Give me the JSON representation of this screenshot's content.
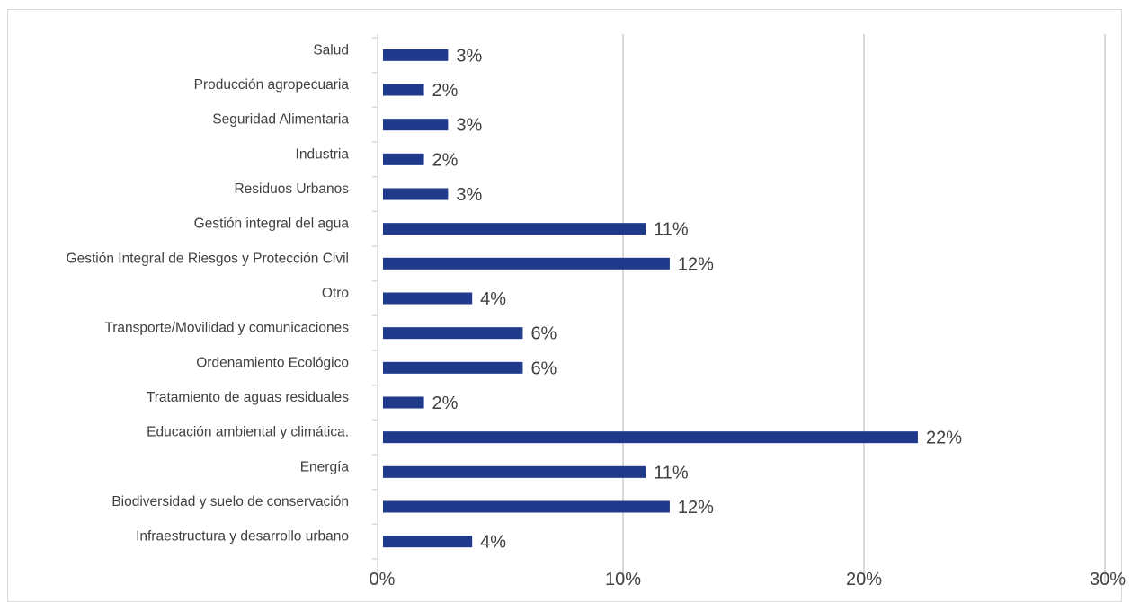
{
  "chart_data": {
    "type": "bar",
    "orientation": "horizontal",
    "categories": [
      "Salud",
      "Producción agropecuaria",
      "Seguridad Alimentaria",
      "Industria",
      "Residuos Urbanos",
      "Gestión integral del agua",
      "Gestión Integral de Riesgos y Protección Civil",
      "Otro",
      "Transporte/Movilidad y comunicaciones",
      "Ordenamiento Ecológico",
      "Tratamiento de aguas residuales",
      "Educación ambiental y climática.",
      "Energía",
      "Biodiversidad y suelo de conservación",
      "Infraestructura y desarrollo urbano"
    ],
    "values": [
      0.027,
      0.017,
      0.027,
      0.017,
      0.027,
      0.109,
      0.119,
      0.037,
      0.058,
      0.058,
      0.017,
      0.222,
      0.109,
      0.119,
      0.037
    ],
    "data_labels": [
      "3%",
      "2%",
      "3%",
      "2%",
      "3%",
      "11%",
      "12%",
      "4%",
      "6%",
      "6%",
      "2%",
      "22%",
      "11%",
      "12%",
      "4%"
    ],
    "xlim": [
      0,
      0.3
    ],
    "x_ticks": [
      0,
      0.1,
      0.2,
      0.3
    ],
    "x_tick_labels": [
      "0%",
      "10%",
      "20%",
      "30%"
    ],
    "grid": "vertical",
    "bar_color": "#1F3A8A",
    "grid_color": "#d9d9d9",
    "title": "",
    "xlabel": "",
    "ylabel": ""
  }
}
